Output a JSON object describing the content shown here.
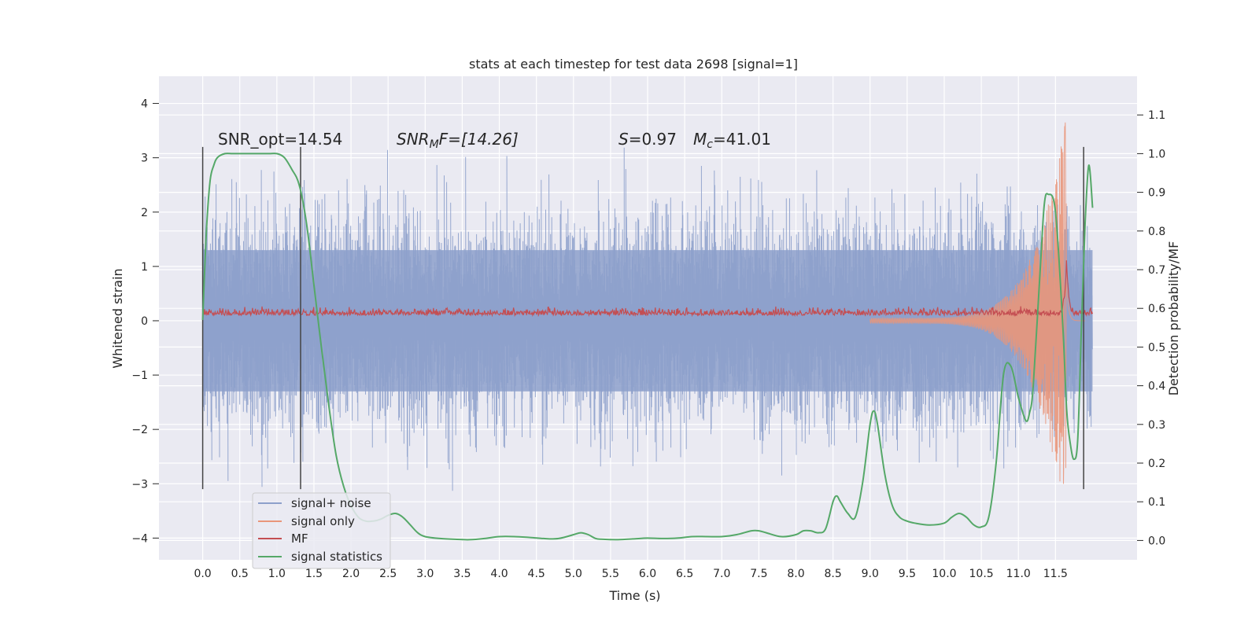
{
  "chart_data": {
    "type": "line",
    "title": "stats at each timestep for test data 2698 [signal=1]",
    "xlabel": "Time (s)",
    "ylabel_left": "Whitened strain",
    "ylabel_right": "Detection probability/MF",
    "xlim": [
      -0.59,
      12.6
    ],
    "ylim_left": [
      -4.4,
      4.5
    ],
    "ylim_right": [
      -0.05,
      1.2
    ],
    "x_ticks": [
      "0.0",
      "0.5",
      "1.0",
      "1.5",
      "2.0",
      "2.5",
      "3.0",
      "3.5",
      "4.0",
      "4.5",
      "5.0",
      "5.5",
      "6.0",
      "6.5",
      "7.0",
      "7.5",
      "8.0",
      "8.5",
      "9.0",
      "9.5",
      "10.0",
      "10.5",
      "11.0",
      "11.5"
    ],
    "y_ticks_left": [
      "−4",
      "−3",
      "−2",
      "−1",
      "0",
      "1",
      "2",
      "3",
      "4"
    ],
    "y_ticks_right": [
      "0.0",
      "0.1",
      "0.2",
      "0.3",
      "0.4",
      "0.5",
      "0.6",
      "0.7",
      "0.8",
      "0.9",
      "1.0",
      "1.1"
    ],
    "grid": true,
    "legend_position": "lower-left",
    "annotations": {
      "snr_opt": "SNR_opt=14.54",
      "snr_mf_sym": "SNR",
      "snr_mf_sub": "M",
      "snr_mf_rest": "F=[14.26]",
      "s_sym": "S",
      "s_val": "=0.97",
      "mc_sym": "M",
      "mc_sub": "c",
      "mc_val": "=41.01"
    },
    "vertical_lines_x": [
      0.0,
      1.32,
      11.88
    ],
    "series": [
      {
        "name": "signal+ noise",
        "color": "#8da0cb",
        "axis": "left",
        "kind": "noise",
        "amplitude_std": 1.0,
        "x_range": [
          0.0,
          12.0
        ]
      },
      {
        "name": "signal only",
        "color": "#e9967a",
        "axis": "left",
        "kind": "chirp",
        "merger_x": 11.65,
        "peak": 3.75
      },
      {
        "name": "MF",
        "color": "#c44e52",
        "axis": "left",
        "kind": "matched-filter",
        "baseline": 0.1,
        "peak_x": 11.65,
        "peak": 1.0
      },
      {
        "name": "signal statistics",
        "color": "#55a868",
        "axis": "right",
        "x": [
          0.0,
          0.05,
          0.1,
          0.15,
          0.2,
          0.3,
          0.4,
          0.5,
          0.6,
          0.7,
          0.8,
          0.9,
          1.0,
          1.1,
          1.2,
          1.3,
          1.4,
          1.5,
          1.6,
          1.7,
          1.8,
          1.9,
          2.0,
          2.1,
          2.2,
          2.3,
          2.4,
          2.5,
          2.6,
          2.7,
          2.8,
          2.9,
          3.0,
          3.2,
          3.4,
          3.6,
          3.8,
          4.0,
          4.2,
          4.4,
          4.6,
          4.8,
          5.0,
          5.1,
          5.2,
          5.3,
          5.4,
          5.6,
          5.8,
          6.0,
          6.2,
          6.4,
          6.6,
          6.8,
          7.0,
          7.2,
          7.4,
          7.5,
          7.6,
          7.8,
          8.0,
          8.1,
          8.2,
          8.3,
          8.4,
          8.5,
          8.55,
          8.6,
          8.7,
          8.8,
          8.9,
          9.0,
          9.05,
          9.1,
          9.2,
          9.3,
          9.4,
          9.5,
          9.6,
          9.8,
          10.0,
          10.1,
          10.2,
          10.3,
          10.4,
          10.5,
          10.6,
          10.7,
          10.8,
          10.9,
          11.0,
          11.1,
          11.15,
          11.2,
          11.3,
          11.35,
          11.4,
          11.5,
          11.6,
          11.65,
          11.7,
          11.75,
          11.8,
          11.85,
          11.9,
          11.95,
          12.0
        ],
        "y": [
          0.57,
          0.8,
          0.93,
          0.97,
          0.99,
          1.0,
          1.0,
          1.0,
          1.0,
          1.0,
          1.0,
          1.0,
          1.0,
          0.99,
          0.96,
          0.92,
          0.82,
          0.66,
          0.5,
          0.35,
          0.22,
          0.14,
          0.09,
          0.06,
          0.05,
          0.05,
          0.055,
          0.065,
          0.07,
          0.06,
          0.04,
          0.02,
          0.01,
          0.005,
          0.003,
          0.002,
          0.005,
          0.01,
          0.01,
          0.008,
          0.005,
          0.005,
          0.015,
          0.02,
          0.015,
          0.005,
          0.003,
          0.002,
          0.004,
          0.006,
          0.005,
          0.006,
          0.01,
          0.01,
          0.01,
          0.015,
          0.025,
          0.025,
          0.02,
          0.01,
          0.015,
          0.025,
          0.025,
          0.02,
          0.03,
          0.1,
          0.115,
          0.1,
          0.07,
          0.06,
          0.15,
          0.3,
          0.335,
          0.3,
          0.17,
          0.09,
          0.06,
          0.05,
          0.045,
          0.04,
          0.045,
          0.06,
          0.07,
          0.06,
          0.04,
          0.035,
          0.06,
          0.2,
          0.43,
          0.45,
          0.37,
          0.31,
          0.33,
          0.4,
          0.72,
          0.87,
          0.895,
          0.85,
          0.55,
          0.34,
          0.25,
          0.21,
          0.26,
          0.55,
          0.82,
          0.97,
          0.86
        ]
      }
    ]
  }
}
